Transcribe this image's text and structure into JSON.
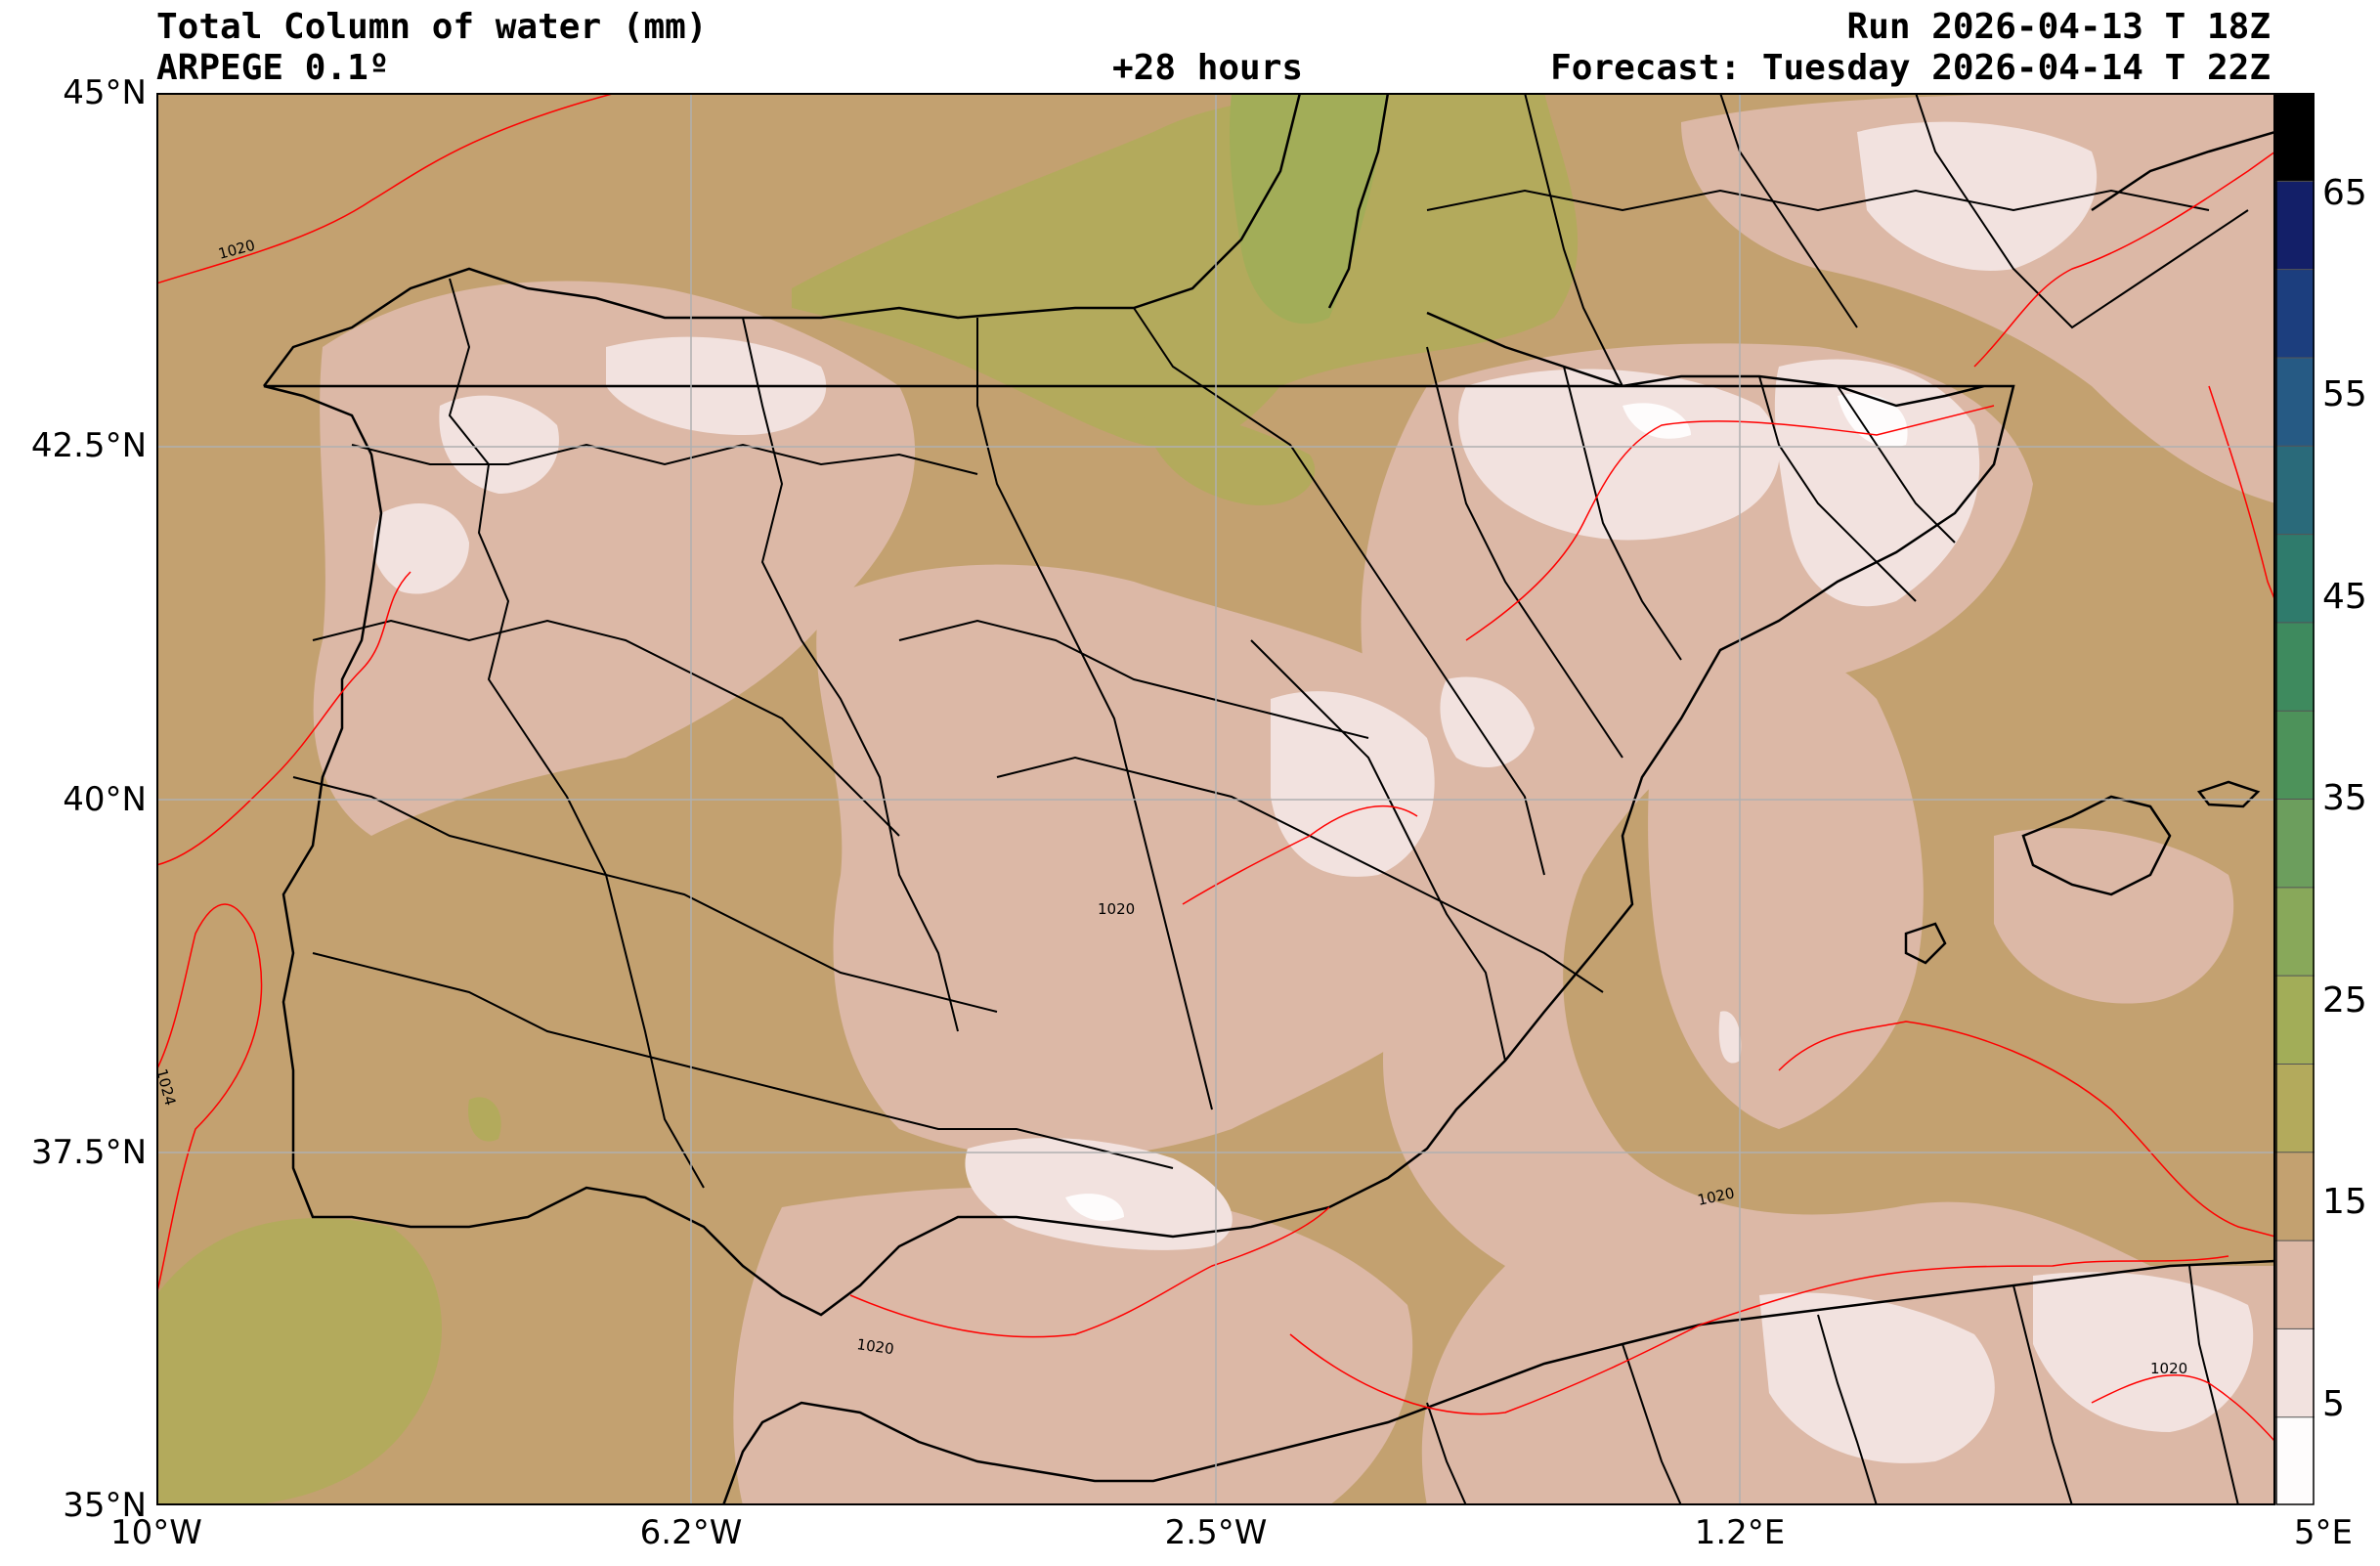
{
  "header": {
    "title": "Total Column of water (mm)",
    "model": "ARPEGE 0.1º",
    "lead_time": "+28 hours",
    "run": "Run 2026-04-13 T 18Z",
    "forecast": "Forecast: Tuesday 2026-04-14 T 22Z"
  },
  "map": {
    "lat_range": [
      35,
      45
    ],
    "lon_range": [
      -10,
      5
    ],
    "lat_ticks": [
      "45°N",
      "42.5°N",
      "40°N",
      "37.5°N",
      "35°N"
    ],
    "lon_ticks": [
      "10°W",
      "6.2°W",
      "2.5°W",
      "1.2°E",
      "5°E"
    ],
    "isobar_labels": [
      "1020",
      "1020",
      "1020",
      "1024",
      "1020",
      "1020"
    ],
    "isobar_color": "#ff0000"
  },
  "colorbar": {
    "ticks": [
      "65",
      "55",
      "45",
      "35",
      "25",
      "15",
      "5"
    ],
    "colors": [
      "#fefcfc",
      "#f2e2df",
      "#dcb8a6",
      "#c3a170",
      "#b3aa5c",
      "#a2ad58",
      "#88a85a",
      "#6c9e5d",
      "#4d925a",
      "#3e8a5e",
      "#2f7b6c",
      "#2a6a7a",
      "#265a84",
      "#1c3e7e",
      "#131f68",
      "#000000"
    ]
  }
}
